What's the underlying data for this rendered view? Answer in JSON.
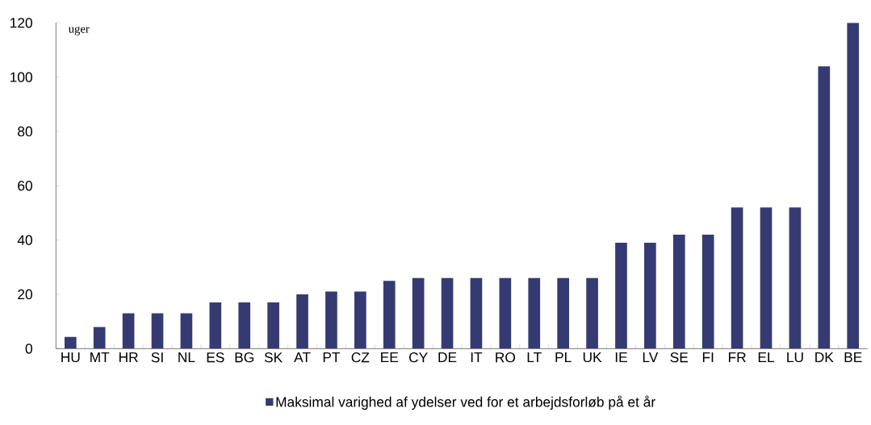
{
  "chart_data": {
    "type": "bar",
    "ylabel": "uger",
    "categories": [
      "HU",
      "MT",
      "HR",
      "SI",
      "NL",
      "ES",
      "BG",
      "SK",
      "AT",
      "PT",
      "CZ",
      "EE",
      "CY",
      "DE",
      "IT",
      "RO",
      "LT",
      "PL",
      "UK",
      "IE",
      "LV",
      "SE",
      "FI",
      "FR",
      "EL",
      "LU",
      "DK",
      "BE"
    ],
    "series": [
      {
        "name": "Maksimal varighed af ydelser ved for et arbejdsforløb på et år",
        "color": "#353b72",
        "values": [
          4.3,
          8,
          13,
          13,
          13,
          17,
          17,
          17,
          20,
          21,
          21,
          25,
          26,
          26,
          26,
          26,
          26,
          26,
          26,
          39,
          39,
          42,
          42,
          52,
          52,
          52,
          104,
          120
        ]
      }
    ],
    "ylim": [
      0,
      120
    ],
    "yticks": [
      0,
      20,
      40,
      60,
      80,
      100,
      120
    ],
    "grid": false,
    "legend": "bottom"
  }
}
